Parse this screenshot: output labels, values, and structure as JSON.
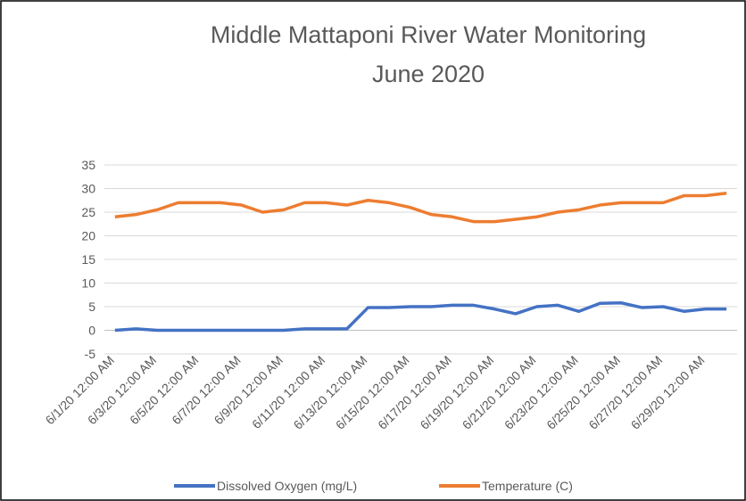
{
  "chart_data": {
    "type": "line",
    "title": "Middle Mattaponi River Water Monitoring",
    "subtitle": "June 2020",
    "categories": [
      "6/1/20 12:00 AM",
      null,
      "6/3/20 12:00 AM",
      null,
      "6/5/20 12:00 AM",
      null,
      "6/7/20 12:00 AM",
      null,
      "6/9/20 12:00 AM",
      null,
      "6/11/20 12:00 AM",
      null,
      "6/13/20 12:00 AM",
      null,
      "6/15/20 12:00 AM",
      null,
      "6/17/20 12:00 AM",
      null,
      "6/19/20 12:00 AM",
      null,
      "6/21/20 12:00 AM",
      null,
      "6/23/20 12:00 AM",
      null,
      "6/25/20 12:00 AM",
      null,
      "6/27/20 12:00 AM",
      null,
      "6/29/20 12:00 AM",
      null
    ],
    "series": [
      {
        "name": "Dissolved Oxygen (mg/L)",
        "color": "#4472c4",
        "values": [
          0,
          0.3,
          0,
          0,
          0,
          0,
          0,
          0,
          0,
          0.3,
          0.3,
          0.3,
          4.8,
          4.8,
          5,
          5,
          5.3,
          5.3,
          4.5,
          3.5,
          5,
          5.3,
          4,
          5.7,
          5.8,
          4.8,
          5,
          4,
          4.5,
          4.5
        ]
      },
      {
        "name": "Temperature (C)",
        "color": "#ed7d31",
        "values": [
          24,
          24.5,
          25.5,
          27,
          27,
          27,
          26.5,
          25,
          25.5,
          27,
          27,
          26.5,
          27.5,
          27,
          26,
          24.5,
          24,
          23,
          23,
          23.5,
          24,
          25,
          25.5,
          26.5,
          27,
          27,
          27,
          28.5,
          28.5,
          29
        ]
      }
    ],
    "ylim": [
      -5,
      35
    ],
    "yticks": [
      -5,
      0,
      5,
      10,
      15,
      20,
      25,
      30,
      35
    ],
    "grid": true,
    "legend": "bottom"
  }
}
